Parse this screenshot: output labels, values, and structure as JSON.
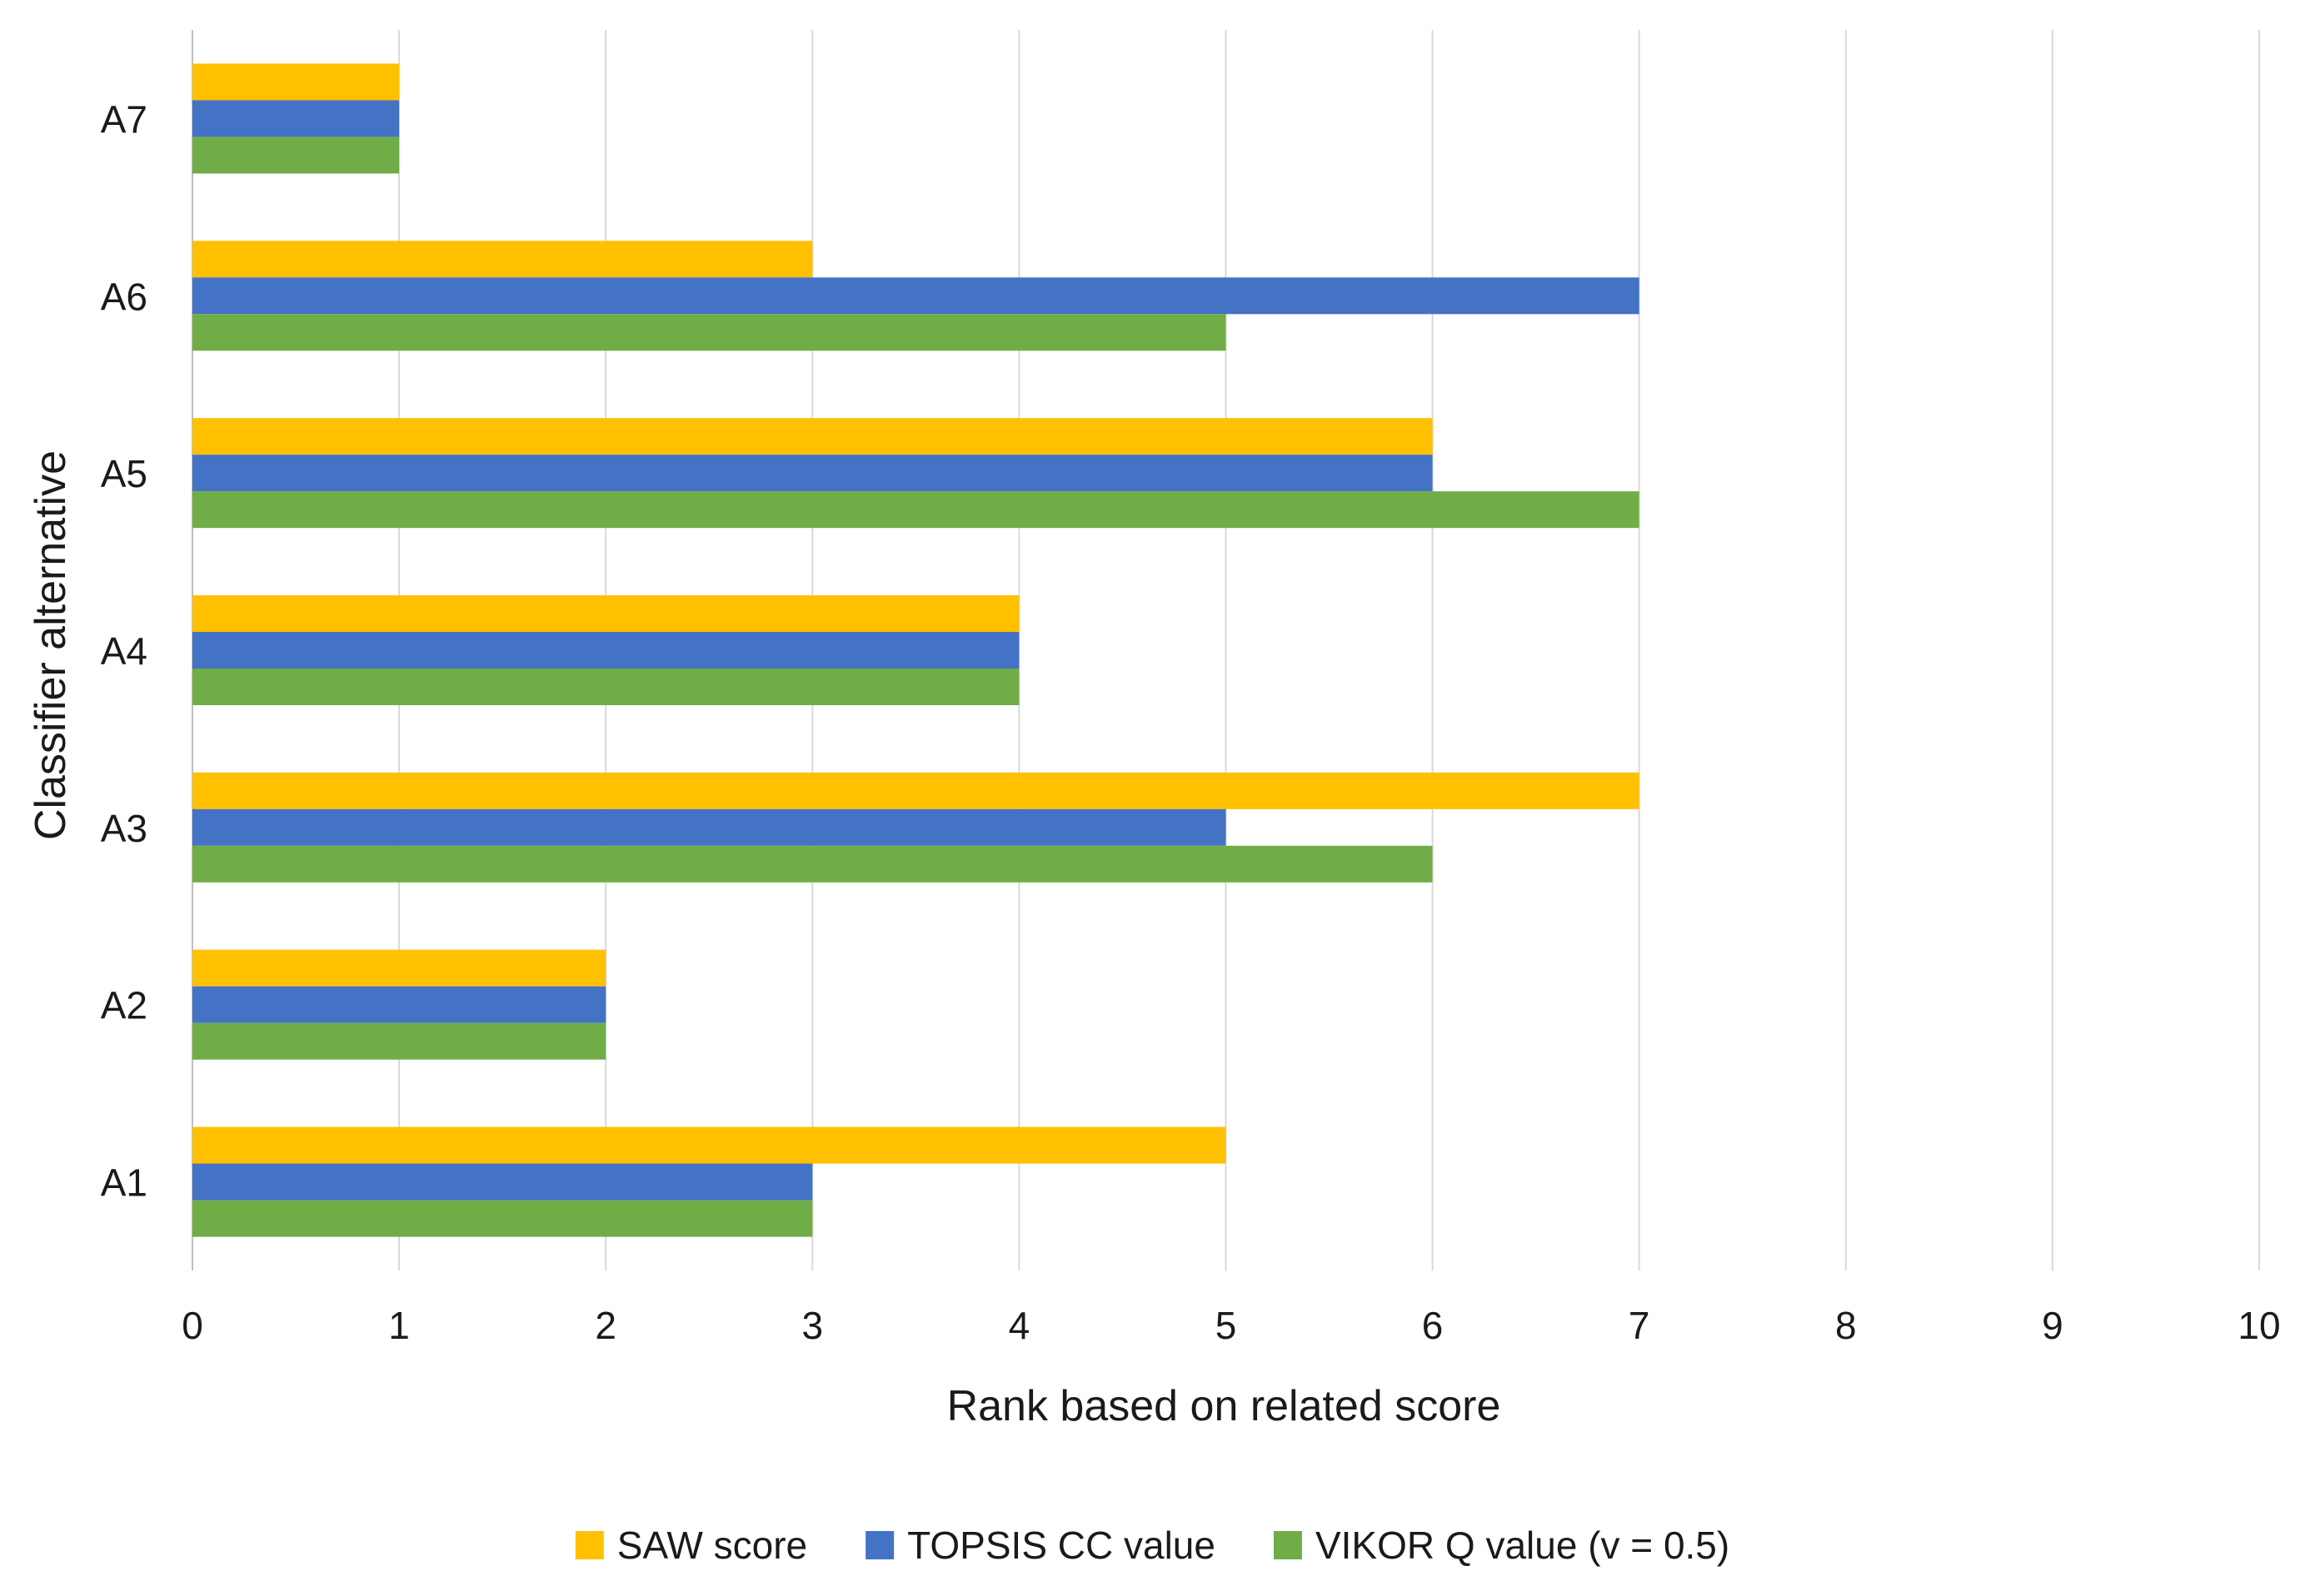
{
  "chart_data": {
    "type": "bar",
    "orientation": "horizontal",
    "title": "",
    "xlabel": "Rank based on related score",
    "ylabel": "Classifier alternative",
    "xlim": [
      0,
      10
    ],
    "xticks": [
      0,
      1,
      2,
      3,
      4,
      5,
      6,
      7,
      8,
      9,
      10
    ],
    "grid": true,
    "legend_position": "bottom",
    "categories": [
      "A1",
      "A2",
      "A3",
      "A4",
      "A5",
      "A6",
      "A7"
    ],
    "series": [
      {
        "name": "SAW score",
        "color": "#FFC000",
        "values": [
          5,
          2,
          7,
          4,
          6,
          3,
          1
        ]
      },
      {
        "name": "TOPSIS CC value",
        "color": "#4472C4",
        "values": [
          3,
          2,
          5,
          4,
          6,
          7,
          1
        ]
      },
      {
        "name": "VIKOR Q value (v = 0.5)",
        "color": "#70AD47",
        "values": [
          3,
          2,
          6,
          4,
          7,
          5,
          1
        ]
      }
    ]
  }
}
